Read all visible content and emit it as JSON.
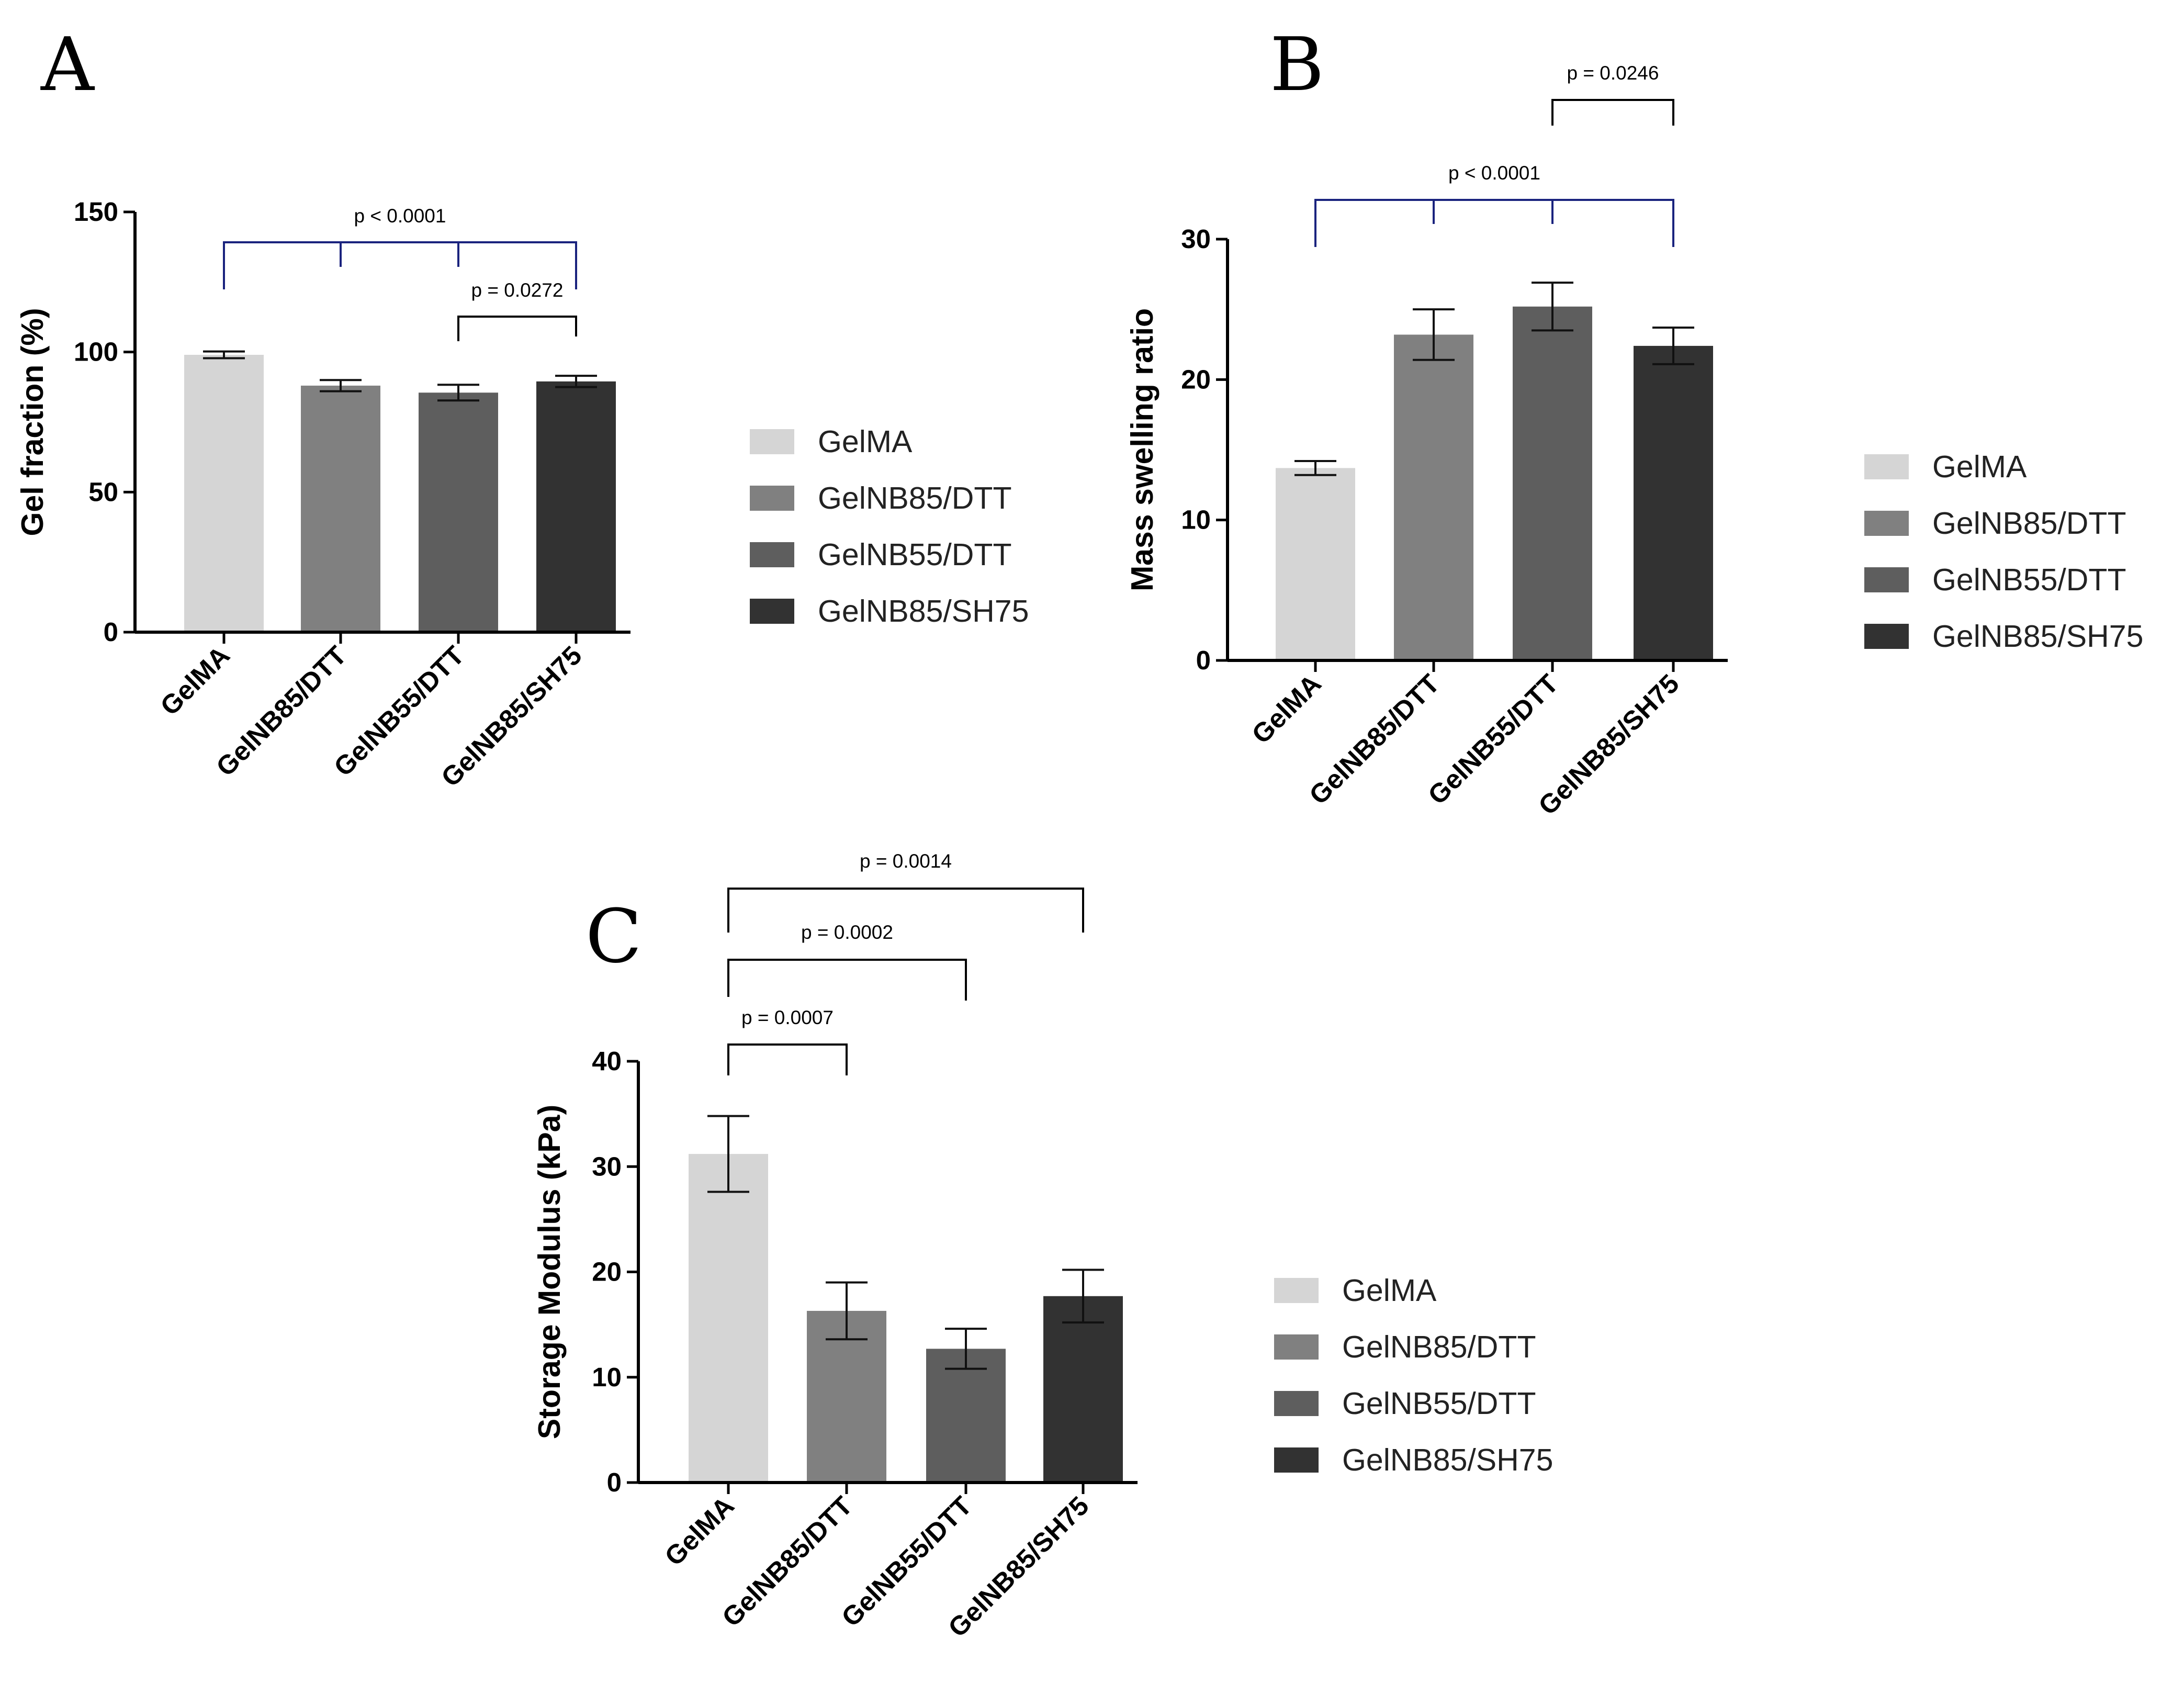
{
  "figure": {
    "legend_entries": [
      {
        "label": "GelMA",
        "color": "#d5d5d5"
      },
      {
        "label": "GelNB85/DTT",
        "color": "#808080"
      },
      {
        "label": "GelNB55/DTT",
        "color": "#5e5e5e"
      },
      {
        "label": "GelNB85/SH75",
        "color": "#323232"
      }
    ]
  },
  "chart_data": [
    {
      "panel": "A",
      "type": "bar",
      "categories": [
        "GelMA",
        "GelNB85/DTT",
        "GelNB55/DTT",
        "GelNB85/SH75"
      ],
      "values": [
        99,
        88,
        85.5,
        89.5
      ],
      "errors": [
        1.2,
        2.0,
        2.8,
        2.0
      ],
      "ylabel": "Gel fraction (%)",
      "ylim": [
        0,
        150
      ],
      "yticks": [
        0,
        50,
        100,
        150
      ],
      "significance": [
        {
          "type": "multi",
          "anchor": 3,
          "targets": [
            0,
            1,
            2
          ],
          "label": "p < 0.0001"
        },
        {
          "type": "pair",
          "from": 2,
          "to": 3,
          "label": "p = 0.0272"
        }
      ]
    },
    {
      "panel": "B",
      "type": "bar",
      "categories": [
        "GelMA",
        "GelNB85/DTT",
        "GelNB55/DTT",
        "GelNB85/SH75"
      ],
      "values": [
        13.7,
        23.2,
        25.2,
        22.4
      ],
      "errors": [
        0.5,
        1.8,
        1.7,
        1.3
      ],
      "ylabel": "Mass swelling ratio",
      "ylim": [
        0,
        30
      ],
      "yticks": [
        0,
        10,
        20,
        30
      ],
      "significance": [
        {
          "type": "multi",
          "anchor": 3,
          "targets": [
            0,
            1,
            2
          ],
          "label": "p < 0.0001"
        },
        {
          "type": "pair",
          "from": 2,
          "to": 3,
          "label": "p = 0.0246"
        }
      ]
    },
    {
      "panel": "C",
      "type": "bar",
      "categories": [
        "GelMA",
        "GelNB85/DTT",
        "GelNB55/DTT",
        "GelNB85/SH75"
      ],
      "values": [
        31.2,
        16.3,
        12.7,
        17.7
      ],
      "errors": [
        3.6,
        2.7,
        1.9,
        2.5
      ],
      "ylabel": "Storage Modulus (kPa)",
      "ylim": [
        0,
        40
      ],
      "yticks": [
        0,
        10,
        20,
        30,
        40
      ],
      "significance": [
        {
          "type": "pair",
          "from": 0,
          "to": 1,
          "label": "p = 0.0007"
        },
        {
          "type": "pair",
          "from": 0,
          "to": 2,
          "label": "p = 0.0002"
        },
        {
          "type": "pair",
          "from": 0,
          "to": 3,
          "label": "p = 0.0014"
        }
      ]
    }
  ]
}
